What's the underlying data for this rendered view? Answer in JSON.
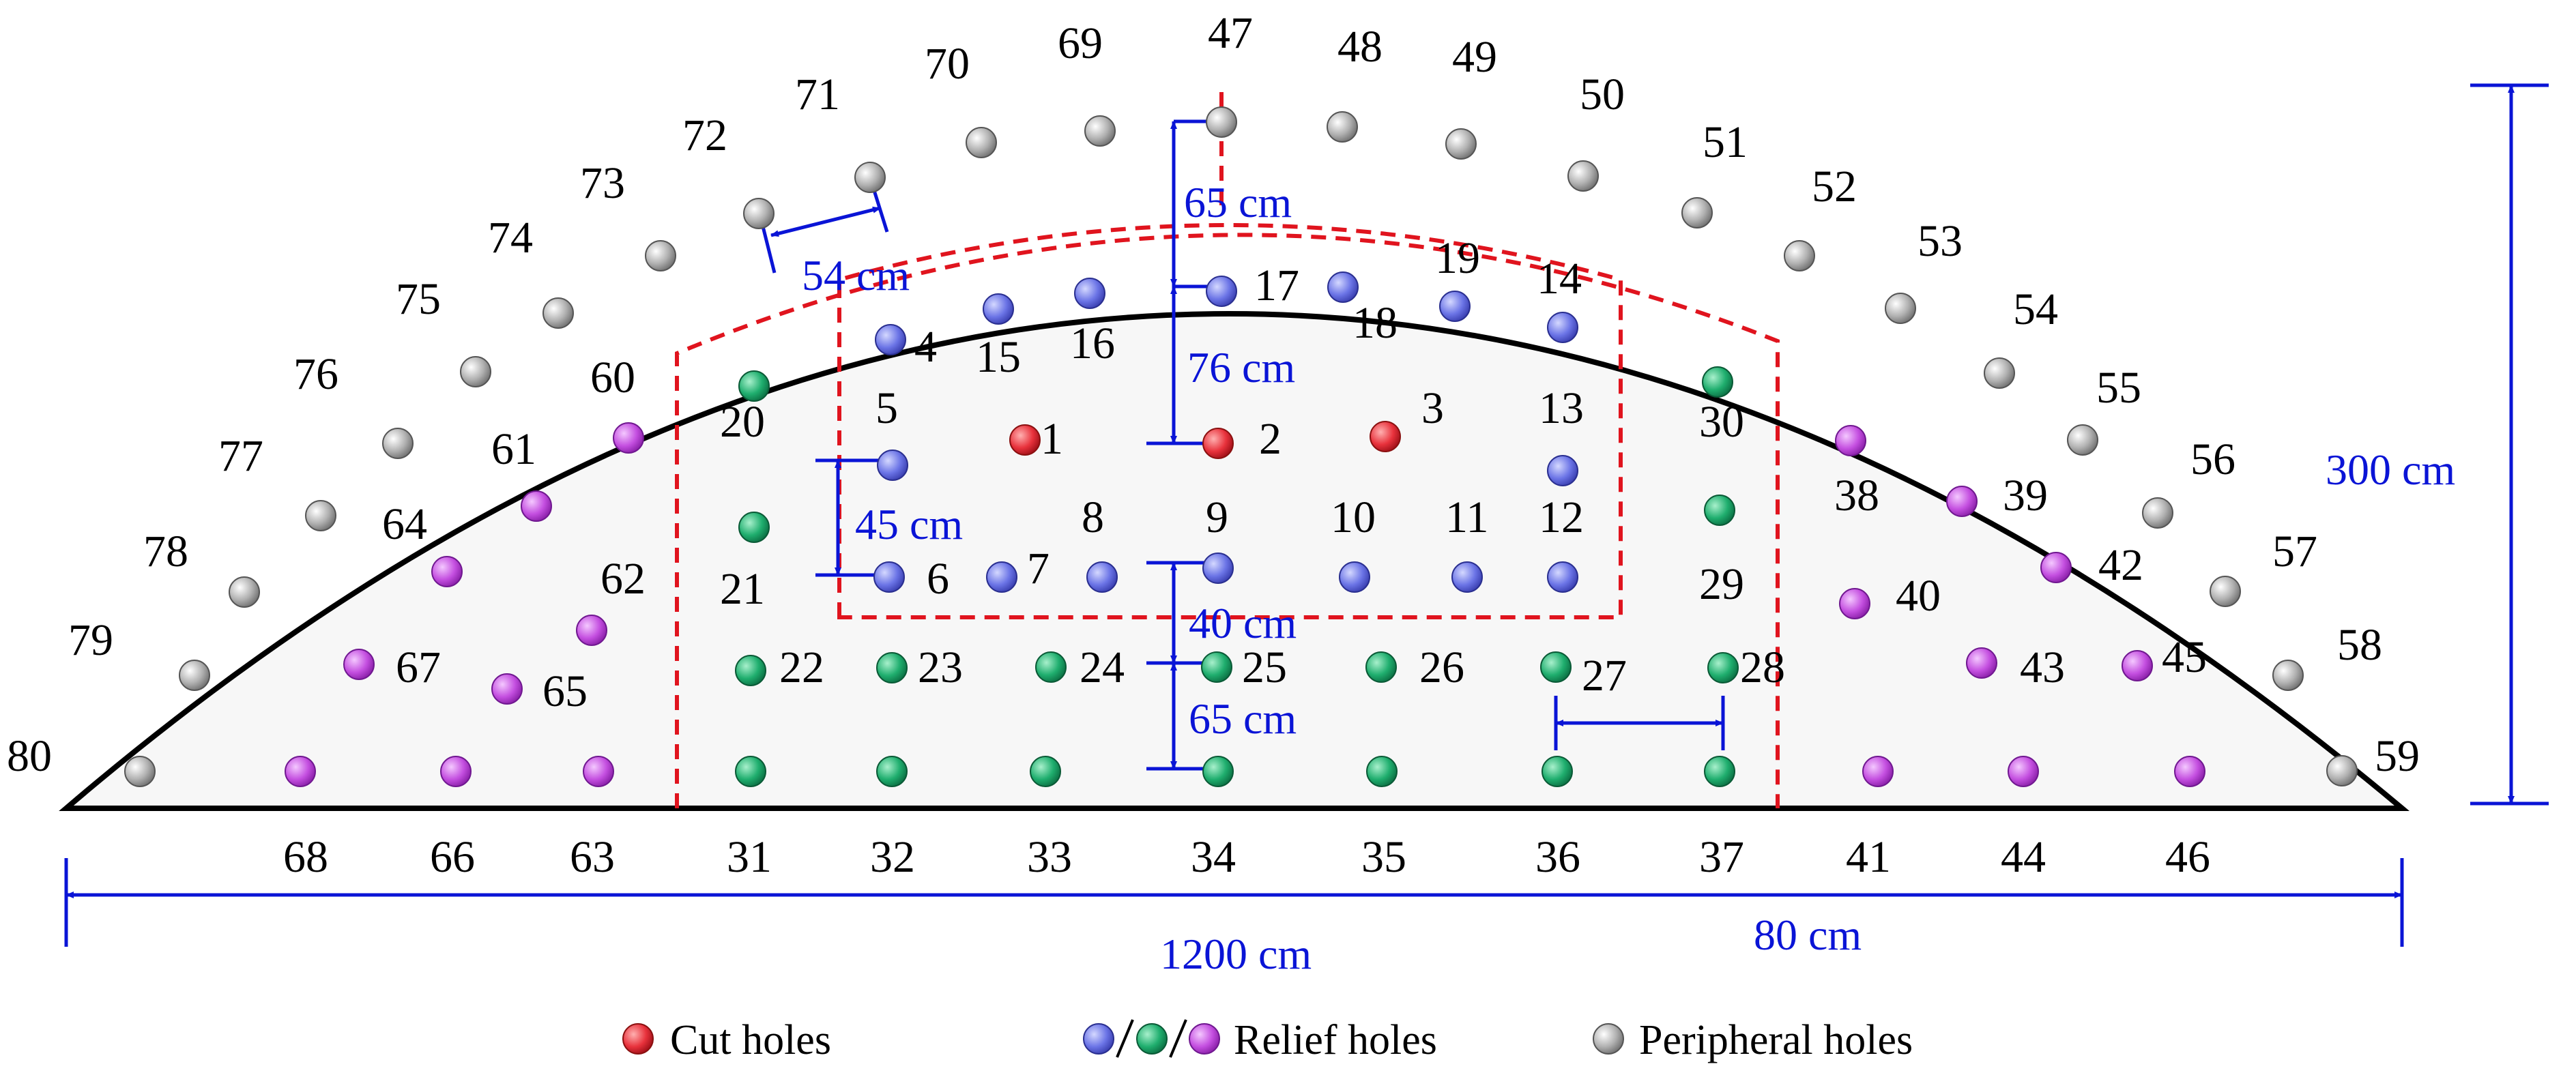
{
  "colors": {
    "cut": "#e8323c",
    "relief_blue": "#6b74e6",
    "relief_green": "#1fae6e",
    "relief_purple": "#c44fe0",
    "peripheral": "#a8a8a8",
    "dimension": "#0a14d6",
    "boundary": "#e0141e",
    "outline": "#000000",
    "fill": "#f7f7f7"
  },
  "holes": {
    "cut": [
      "1",
      "2",
      "3"
    ],
    "relief_blue": [
      "4",
      "5",
      "6",
      "7",
      "8",
      "9",
      "10",
      "11",
      "12",
      "13",
      "14",
      "15",
      "16",
      "17",
      "18",
      "19"
    ],
    "relief_green": [
      "20",
      "21",
      "22",
      "23",
      "24",
      "25",
      "26",
      "27",
      "28",
      "29",
      "30",
      "31",
      "32",
      "33",
      "34",
      "35",
      "36",
      "37"
    ],
    "relief_purple": [
      "38",
      "39",
      "40",
      "41",
      "42",
      "43",
      "44",
      "45",
      "46",
      "60",
      "61",
      "62",
      "63",
      "64",
      "65",
      "66",
      "67",
      "68"
    ],
    "peripheral": [
      "47",
      "48",
      "49",
      "50",
      "51",
      "52",
      "53",
      "54",
      "55",
      "56",
      "57",
      "58",
      "59",
      "69",
      "70",
      "71",
      "72",
      "73",
      "74",
      "75",
      "76",
      "77",
      "78",
      "79",
      "80"
    ]
  },
  "dimensions": {
    "top_spacing": "65 cm",
    "peripheral_spacing": "54 cm",
    "vertical_spacing": "76 cm",
    "left_spacing": "45 cm",
    "mid_spacing": "40 cm",
    "bottom_spacing": "65 cm",
    "height": "300 cm",
    "width": "1200 cm",
    "horizontal_spacing": "80 cm"
  },
  "legend": {
    "cut_label": "Cut holes",
    "relief_label": "Relief holes",
    "peripheral_label": "Peripheral holes"
  }
}
